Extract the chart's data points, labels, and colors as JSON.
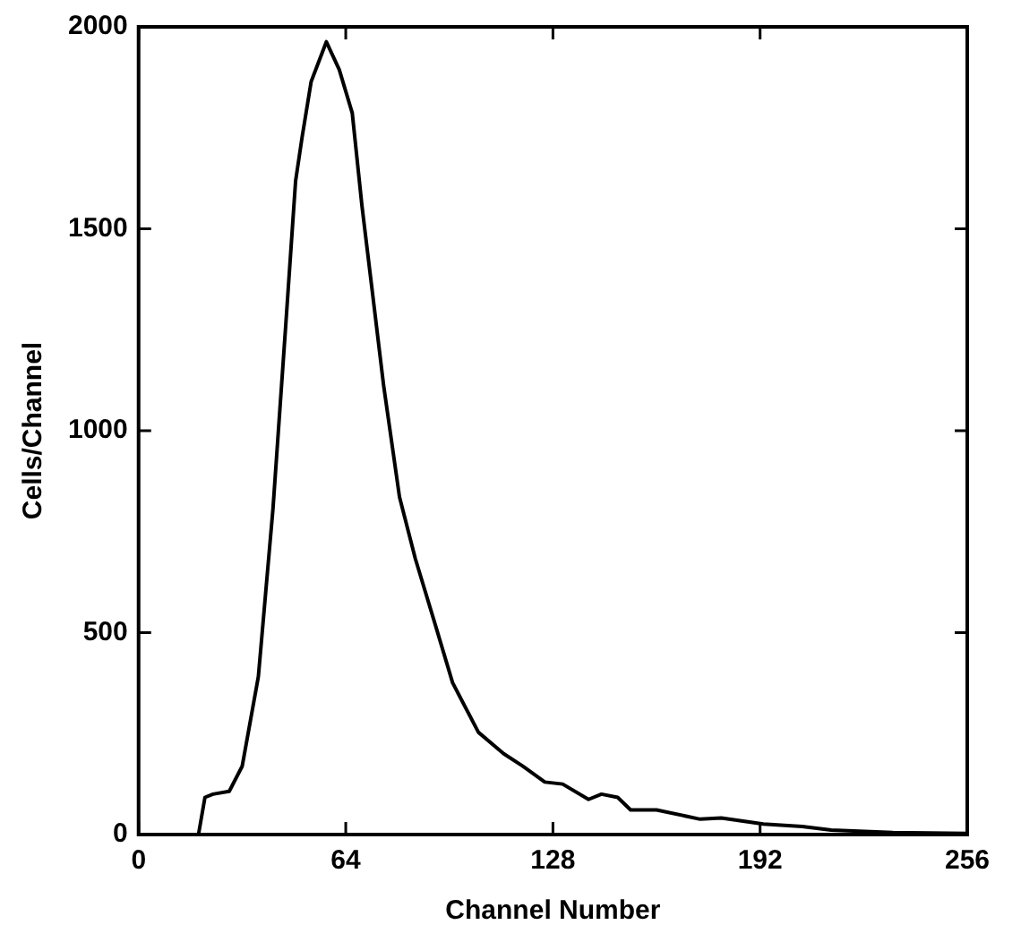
{
  "chart_data": {
    "type": "line",
    "xlabel": "Channel Number",
    "ylabel": "Cells/Channel",
    "xlim": [
      0,
      256
    ],
    "xticks": [
      0,
      64,
      128,
      192,
      256
    ],
    "ylim": [
      0,
      2000
    ],
    "yticks": [
      0,
      500,
      1000,
      1500,
      2000
    ],
    "grid": false,
    "legend": false,
    "marker": "none",
    "line_style": "solid",
    "series": [
      {
        "color": "#000000",
        "x": [
          18.5,
          20.5,
          23,
          28,
          32,
          37,
          41.5,
          45.5,
          48.5,
          50.5,
          53.3,
          58,
          62,
          66,
          69,
          72,
          75.7,
          80.6,
          85.5,
          91.3,
          97,
          105,
          112.8,
          118.6,
          125.5,
          131,
          139,
          143,
          148,
          152,
          160,
          173.5,
          180,
          193,
          205,
          214,
          233,
          256
        ],
        "values": [
          0,
          92,
          100,
          107,
          169,
          391,
          805,
          1266,
          1618,
          1726,
          1864,
          1963,
          1894,
          1787,
          1557,
          1358,
          1112,
          836,
          683,
          529,
          376,
          253,
          200,
          170,
          130,
          125,
          87,
          100,
          92,
          61,
          61,
          38,
          41,
          26,
          20,
          11,
          5,
          3
        ]
      }
    ]
  }
}
